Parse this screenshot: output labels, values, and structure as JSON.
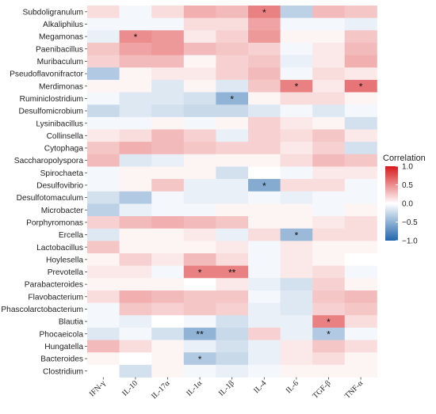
{
  "chart_data": {
    "type": "heatmap",
    "title": "",
    "xlabel": "",
    "ylabel": "",
    "columns": [
      "IFN-γ",
      "IL-10",
      "IL-17α",
      "IL-1α",
      "IL-1β",
      "IL-4",
      "IL-6",
      "TGF-β",
      "TNF-α"
    ],
    "rows": [
      "Subdoligranulum",
      "Alkaliphilus",
      "Megamonas",
      "Paenibacillus",
      "Muribaculum",
      "Pseudoflavonifractor",
      "Merdimonas",
      "Ruminiclostridium",
      "Desulfomicrobium",
      "Lysinibacillus",
      "Collinsella",
      "Cytophaga",
      "Saccharopolyspora",
      "Spirochaeta",
      "Desulfovibrio",
      "Desulfotomaculum",
      "Microbacter",
      "Porphyromonas",
      "Ercella",
      "Lactobacillus",
      "Hoylesella",
      "Prevotella",
      "Parabacteroides",
      "Flavobacterium",
      "Phascolarctobacterium",
      "Blautia",
      "Phocaeicola",
      "Hungatella",
      "Bacteroides",
      "Clostridium"
    ],
    "values": [
      [
        0.15,
        -0.05,
        0.15,
        0.35,
        0.3,
        0.55,
        -0.3,
        0.3,
        0.25
      ],
      [
        -0.05,
        -0.05,
        -0.05,
        0.15,
        0.15,
        0.4,
        -0.05,
        -0.05,
        -0.1
      ],
      [
        -0.1,
        0.5,
        0.45,
        0.1,
        0.2,
        0.45,
        0.05,
        0.05,
        0.25
      ],
      [
        0.25,
        0.4,
        0.45,
        0.3,
        0.25,
        0.2,
        -0.05,
        0.1,
        0.3
      ],
      [
        0.2,
        0.3,
        0.3,
        0.05,
        0.2,
        0.25,
        -0.1,
        0.1,
        0.35
      ],
      [
        -0.35,
        0.05,
        0.1,
        0.1,
        0.2,
        0.3,
        -0.05,
        0.15,
        0.1
      ],
      [
        0.05,
        0.05,
        -0.15,
        0.05,
        -0.15,
        0.25,
        0.55,
        0.1,
        0.6
      ],
      [
        -0.05,
        -0.15,
        -0.15,
        -0.2,
        -0.5,
        0.05,
        0.15,
        0.15,
        0.05
      ],
      [
        -0.25,
        -0.15,
        -0.2,
        -0.25,
        -0.25,
        -0.15,
        -0.05,
        -0.15,
        -0.05
      ],
      [
        -0.05,
        -0.05,
        0.05,
        -0.05,
        0.05,
        0.2,
        0.1,
        0.05,
        -0.2
      ],
      [
        0.1,
        0.15,
        0.3,
        0.2,
        -0.1,
        0.2,
        0.15,
        0.25,
        0.1
      ],
      [
        0.25,
        0.35,
        0.3,
        0.25,
        0.2,
        0.2,
        0.1,
        0.2,
        -0.2
      ],
      [
        0.3,
        -0.15,
        -0.1,
        0.05,
        0.05,
        0.05,
        0.15,
        0.3,
        0.25
      ],
      [
        -0.05,
        0.05,
        0.05,
        0.05,
        -0.2,
        0.0,
        -0.05,
        0.1,
        0.1
      ],
      [
        -0.05,
        0.05,
        0.25,
        -0.1,
        -0.1,
        -0.55,
        0.15,
        0.15,
        -0.05
      ],
      [
        -0.2,
        -0.35,
        -0.05,
        -0.1,
        -0.1,
        -0.05,
        -0.1,
        -0.05,
        -0.05
      ],
      [
        -0.3,
        -0.1,
        -0.05,
        -0.05,
        0.05,
        0.05,
        0.05,
        -0.05,
        0.05
      ],
      [
        0.2,
        0.3,
        0.35,
        0.3,
        0.25,
        0.05,
        0.05,
        0.1,
        0.15
      ],
      [
        -0.15,
        0.05,
        0.05,
        0.1,
        -0.1,
        0.15,
        -0.45,
        0.15,
        0.15
      ],
      [
        0.25,
        0.05,
        0.05,
        0.05,
        0.1,
        -0.05,
        0.1,
        0.05,
        0.05
      ],
      [
        0.05,
        0.2,
        0.1,
        0.3,
        0.15,
        -0.05,
        0.1,
        0.05,
        0.0
      ],
      [
        0.1,
        0.1,
        -0.05,
        0.55,
        0.55,
        -0.05,
        0.1,
        0.15,
        -0.05
      ],
      [
        0.05,
        0.05,
        0.05,
        0.0,
        0.1,
        -0.1,
        -0.2,
        0.2,
        0.05
      ],
      [
        0.15,
        0.35,
        0.3,
        0.25,
        0.25,
        -0.05,
        -0.15,
        0.25,
        0.3
      ],
      [
        -0.05,
        0.25,
        0.2,
        0.25,
        0.2,
        -0.1,
        -0.15,
        0.2,
        0.25
      ],
      [
        -0.05,
        -0.1,
        0.0,
        -0.05,
        -0.2,
        -0.1,
        -0.1,
        0.55,
        0.15
      ],
      [
        -0.15,
        -0.05,
        -0.2,
        -0.5,
        -0.25,
        0.2,
        -0.1,
        -0.35,
        -0.05
      ],
      [
        0.3,
        0.15,
        0.05,
        -0.1,
        -0.2,
        -0.1,
        0.1,
        0.25,
        0.15
      ],
      [
        0.05,
        0.0,
        0.05,
        -0.35,
        -0.25,
        -0.1,
        0.1,
        0.15,
        0.05
      ],
      [
        0.0,
        -0.2,
        0.05,
        -0.05,
        -0.1,
        -0.05,
        0.05,
        0.05,
        0.05
      ]
    ],
    "significance": [
      [
        "",
        "",
        "",
        "",
        "",
        "*",
        "",
        "",
        ""
      ],
      [
        "",
        "",
        "",
        "",
        "",
        "",
        "",
        "",
        ""
      ],
      [
        "",
        "*",
        "",
        "",
        "",
        "",
        "",
        "",
        ""
      ],
      [
        "",
        "",
        "",
        "",
        "",
        "",
        "",
        "",
        ""
      ],
      [
        "",
        "",
        "",
        "",
        "",
        "",
        "",
        "",
        ""
      ],
      [
        "",
        "",
        "",
        "",
        "",
        "",
        "",
        "",
        ""
      ],
      [
        "",
        "",
        "",
        "",
        "",
        "",
        "*",
        "",
        "*"
      ],
      [
        "",
        "",
        "",
        "",
        "*",
        "",
        "",
        "",
        ""
      ],
      [
        "",
        "",
        "",
        "",
        "",
        "",
        "",
        "",
        ""
      ],
      [
        "",
        "",
        "",
        "",
        "",
        "",
        "",
        "",
        ""
      ],
      [
        "",
        "",
        "",
        "",
        "",
        "",
        "",
        "",
        ""
      ],
      [
        "",
        "",
        "",
        "",
        "",
        "",
        "",
        "",
        ""
      ],
      [
        "",
        "",
        "",
        "",
        "",
        "",
        "",
        "",
        ""
      ],
      [
        "",
        "",
        "",
        "",
        "",
        "",
        "",
        "",
        ""
      ],
      [
        "",
        "",
        "",
        "",
        "",
        "*",
        "",
        "",
        ""
      ],
      [
        "",
        "",
        "",
        "",
        "",
        "",
        "",
        "",
        ""
      ],
      [
        "",
        "",
        "",
        "",
        "",
        "",
        "",
        "",
        ""
      ],
      [
        "",
        "",
        "",
        "",
        "",
        "",
        "",
        "",
        ""
      ],
      [
        "",
        "",
        "",
        "",
        "",
        "",
        "*",
        "",
        ""
      ],
      [
        "",
        "",
        "",
        "",
        "",
        "",
        "",
        "",
        ""
      ],
      [
        "",
        "",
        "",
        "",
        "",
        "",
        "",
        "",
        ""
      ],
      [
        "",
        "",
        "",
        "*",
        "**",
        "",
        "",
        "",
        ""
      ],
      [
        "",
        "",
        "",
        "",
        "",
        "",
        "",
        "",
        ""
      ],
      [
        "",
        "",
        "",
        "",
        "",
        "",
        "",
        "",
        ""
      ],
      [
        "",
        "",
        "",
        "",
        "",
        "",
        "",
        "",
        ""
      ],
      [
        "",
        "",
        "",
        "",
        "",
        "",
        "",
        "*",
        ""
      ],
      [
        "",
        "",
        "",
        "**",
        "",
        "",
        "",
        "*",
        ""
      ],
      [
        "",
        "",
        "",
        "",
        "",
        "",
        "",
        "",
        ""
      ],
      [
        "",
        "",
        "",
        "*",
        "",
        "",
        "",
        "",
        ""
      ],
      [
        "",
        "",
        "",
        "",
        "",
        "",
        "",
        "",
        ""
      ]
    ],
    "legend": {
      "title": "Correlation",
      "placement": "right",
      "range": [
        -1.0,
        1.0
      ],
      "ticks": [
        "1.0",
        "0.5",
        "0.0",
        "−0.5",
        "−1.0"
      ],
      "colors": {
        "negative": "#2166ac",
        "zero": "#ffffff",
        "positive": "#d7191c"
      }
    }
  }
}
